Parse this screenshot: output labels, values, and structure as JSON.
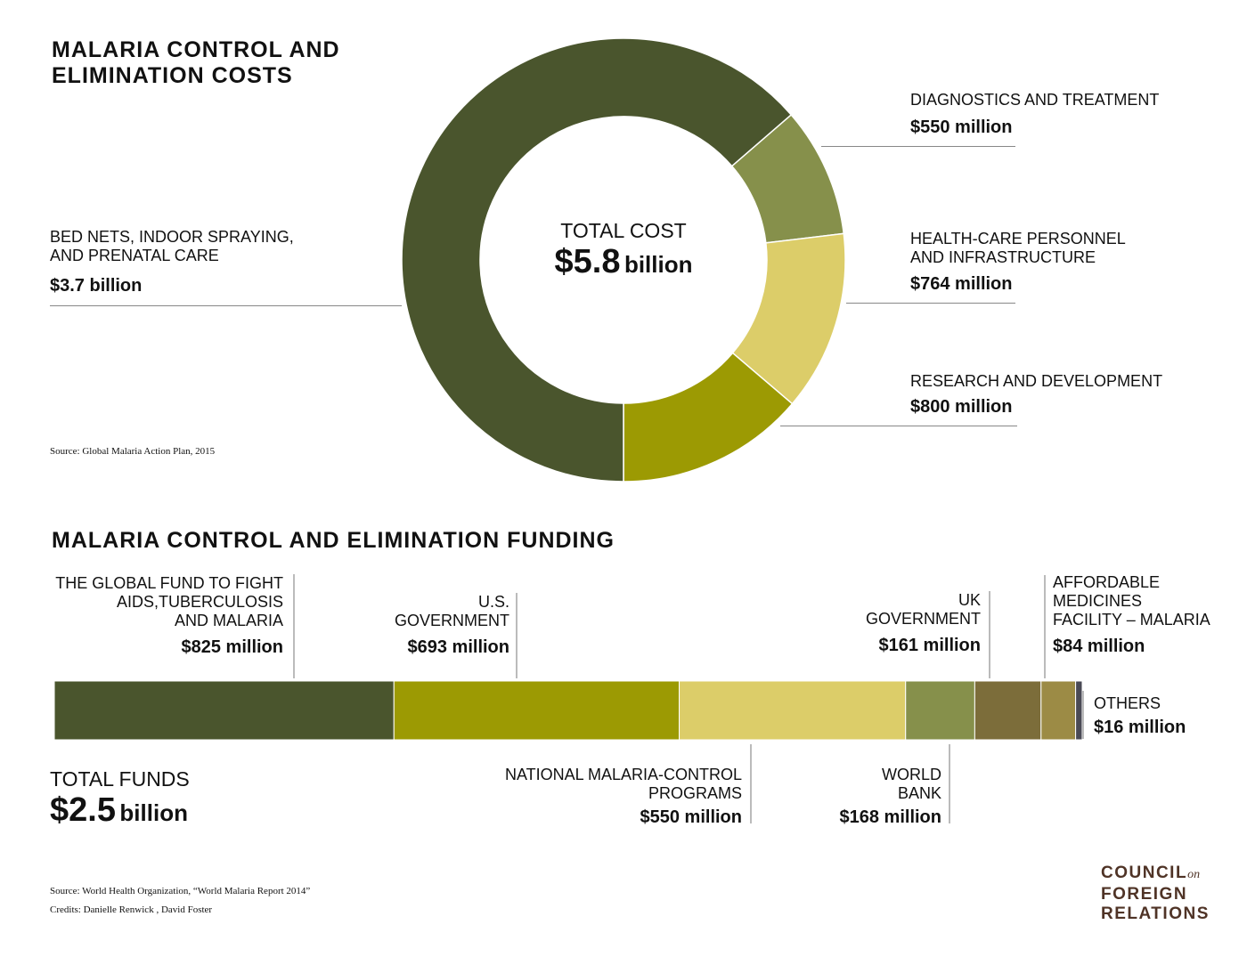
{
  "cost": {
    "title_line1": "MALARIA CONTROL AND",
    "title_line2": "ELIMINATION COSTS",
    "total_label": "TOTAL COST",
    "total_value": "$5.8",
    "total_unit": "billion",
    "source": "Source: Global Malaria Action Plan, 2015"
  },
  "funding": {
    "title": "MALARIA CONTROL AND ELIMINATION FUNDING",
    "total_label": "TOTAL FUNDS",
    "total_value": "$2.5",
    "total_unit": "billion",
    "source": "Source: World Health Organization, “World Malaria Report 2014”",
    "credits": "Credits: Danielle Renwick , David Foster"
  },
  "logo": {
    "line1": "COUNCIL",
    "line1_small": "on",
    "line2": "FOREIGN",
    "line3": "RELATIONS"
  },
  "chart_data": [
    {
      "type": "pie",
      "title": "MALARIA CONTROL AND ELIMINATION COSTS",
      "unit": "million USD",
      "categories": [
        "BED NETS, INDOOR SPRAYING, AND PRENATAL CARE",
        "DIAGNOSTICS AND TREATMENT",
        "HEALTH-CARE PERSONNEL AND INFRASTRUCTURE",
        "RESEARCH AND DEVELOPMENT"
      ],
      "values": [
        3700,
        550,
        764,
        800
      ],
      "value_labels": [
        "$3.7 billion",
        "$550 million",
        "$764 million",
        "$800 million"
      ],
      "label_lines": [
        [
          "BED NETS, INDOOR SPRAYING,",
          "AND PRENATAL CARE"
        ],
        [
          "DIAGNOSTICS AND TREATMENT"
        ],
        [
          "HEALTH-CARE PERSONNEL",
          "AND INFRASTRUCTURE"
        ],
        [
          "RESEARCH AND DEVELOPMENT"
        ]
      ],
      "colors": [
        "#4a552d",
        "#86904b",
        "#dccd69",
        "#9c9a03"
      ]
    },
    {
      "type": "bar",
      "stacked": true,
      "orientation": "horizontal",
      "title": "MALARIA CONTROL AND ELIMINATION FUNDING",
      "unit": "million USD",
      "categories": [
        "THE GLOBAL FUND TO FIGHT AIDS,TUBERCULOSIS AND MALARIA",
        "U.S. GOVERNMENT",
        "NATIONAL MALARIA-CONTROL PROGRAMS",
        "WORLD BANK",
        "UK GOVERNMENT",
        "AFFORDABLE MEDICINES FACILITY – MALARIA",
        "OTHERS"
      ],
      "values": [
        825,
        693,
        550,
        168,
        161,
        84,
        16
      ],
      "value_labels": [
        "$825 million",
        "$693 million",
        "$550 million",
        "$168 million",
        "$161 million",
        "$84 million",
        "$16 million"
      ],
      "label_lines": [
        [
          "THE GLOBAL FUND TO FIGHT",
          "AIDS,TUBERCULOSIS",
          "AND MALARIA"
        ],
        [
          "U.S.",
          "GOVERNMENT"
        ],
        [
          "NATIONAL MALARIA-CONTROL",
          "PROGRAMS"
        ],
        [
          "WORLD",
          "BANK"
        ],
        [
          "UK",
          "GOVERNMENT"
        ],
        [
          "AFFORDABLE",
          "MEDICINES",
          "FACILITY – MALARIA"
        ],
        [
          "OTHERS"
        ]
      ],
      "colors": [
        "#4a552d",
        "#9c9a03",
        "#dccd69",
        "#86904b",
        "#7c6d3a",
        "#9c8b45",
        "#4a4a55"
      ]
    }
  ]
}
